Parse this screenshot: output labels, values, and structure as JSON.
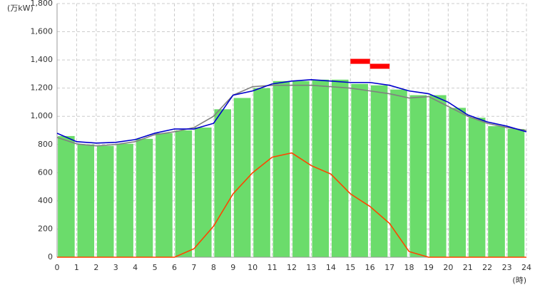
{
  "chart_data": {
    "type": "bar",
    "y_unit_label": "(万kW)",
    "x_unit_label": "(時)",
    "xlim": [
      0,
      24
    ],
    "xticks": [
      0,
      1,
      2,
      3,
      4,
      5,
      6,
      7,
      8,
      9,
      10,
      11,
      12,
      13,
      14,
      15,
      16,
      17,
      18,
      19,
      20,
      21,
      22,
      23,
      24
    ],
    "ylim": [
      0,
      1800
    ],
    "yticks": [
      0,
      200,
      400,
      600,
      800,
      {
        "value": 1000,
        "label": "1,000"
      },
      {
        "value": 1200,
        "label": "1,200"
      },
      {
        "value": 1400,
        "label": "1,400"
      },
      {
        "value": 1600,
        "label": "1,600"
      },
      {
        "value": 1800,
        "label": "1,800"
      }
    ],
    "grid": true,
    "bars": {
      "color": "#6bdc6b",
      "x": [
        0,
        1,
        2,
        3,
        4,
        5,
        6,
        7,
        8,
        9,
        10,
        11,
        12,
        13,
        14,
        15,
        16,
        17,
        18,
        19,
        20,
        21,
        22,
        23
      ],
      "values": [
        860,
        800,
        790,
        805,
        840,
        880,
        900,
        920,
        1050,
        1130,
        1200,
        1250,
        1250,
        1260,
        1260,
        1230,
        1220,
        1190,
        1150,
        1150,
        1060,
        990,
        930,
        910
      ]
    },
    "x": [
      0,
      1,
      2,
      3,
      4,
      5,
      6,
      7,
      8,
      9,
      10,
      11,
      12,
      13,
      14,
      15,
      16,
      17,
      18,
      19,
      20,
      21,
      22,
      23,
      24
    ],
    "series": [
      {
        "color": "#808080",
        "values": [
          850,
          805,
          790,
          800,
          820,
          870,
          890,
          920,
          1000,
          1150,
          1210,
          1220,
          1220,
          1220,
          1210,
          1200,
          1180,
          1160,
          1130,
          1140,
          1070,
          1000,
          950,
          920,
          900
        ]
      },
      {
        "color": "#0000cc",
        "values": [
          880,
          820,
          810,
          815,
          835,
          880,
          910,
          910,
          950,
          1150,
          1180,
          1230,
          1250,
          1260,
          1250,
          1240,
          1240,
          1220,
          1180,
          1160,
          1100,
          1010,
          960,
          930,
          890
        ]
      },
      {
        "color": "#ff4400",
        "values": [
          0,
          0,
          0,
          0,
          0,
          0,
          0,
          60,
          220,
          450,
          600,
          710,
          740,
          650,
          590,
          450,
          360,
          240,
          40,
          0,
          0,
          0,
          0,
          0,
          0
        ]
      }
    ],
    "peak_markers": {
      "color": "#ff0000",
      "x_start": [
        15,
        16
      ],
      "x_end": [
        16,
        17
      ],
      "values": [
        1390,
        1355
      ]
    }
  }
}
